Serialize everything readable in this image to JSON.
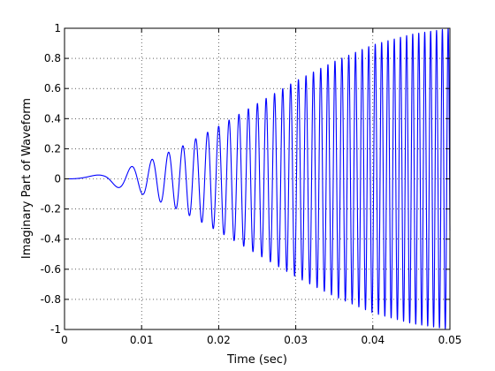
{
  "chart_data": {
    "type": "line",
    "title": "",
    "xlabel": "Time (sec)",
    "ylabel": "Imaginary Part of Waveform",
    "xlim": [
      0,
      0.05
    ],
    "ylim": [
      -1,
      1
    ],
    "x_ticks": [
      0,
      0.01,
      0.02,
      0.03,
      0.04,
      0.05
    ],
    "x_tick_labels": [
      "0",
      "0.01",
      "0.02",
      "0.03",
      "0.04",
      "0.05"
    ],
    "y_ticks": [
      -1,
      -0.8,
      -0.6,
      -0.4,
      -0.2,
      0,
      0.2,
      0.4,
      0.6,
      0.8,
      1
    ],
    "y_tick_labels": [
      "-1",
      "-0.8",
      "-0.6",
      "-0.4",
      "-0.2",
      "0",
      "0.2",
      "0.4",
      "0.6",
      "0.8",
      "1"
    ],
    "grid": true,
    "grid_style": "dotted",
    "line_color": "#0000ff",
    "series": [
      {
        "envelope_time": [
          0,
          0.005,
          0.01,
          0.015,
          0.02,
          0.025,
          0.03,
          0.035,
          0.04,
          0.045,
          0.05
        ],
        "envelope_amplitude": [
          0,
          0.03,
          0.1,
          0.21,
          0.35,
          0.5,
          0.65,
          0.78,
          0.89,
          0.96,
          1.0
        ],
        "oscillation_frequency_hz": [
          0,
          150,
          380,
          560,
          720,
          870,
          1000,
          1100,
          1190,
          1270,
          1340
        ]
      }
    ]
  }
}
